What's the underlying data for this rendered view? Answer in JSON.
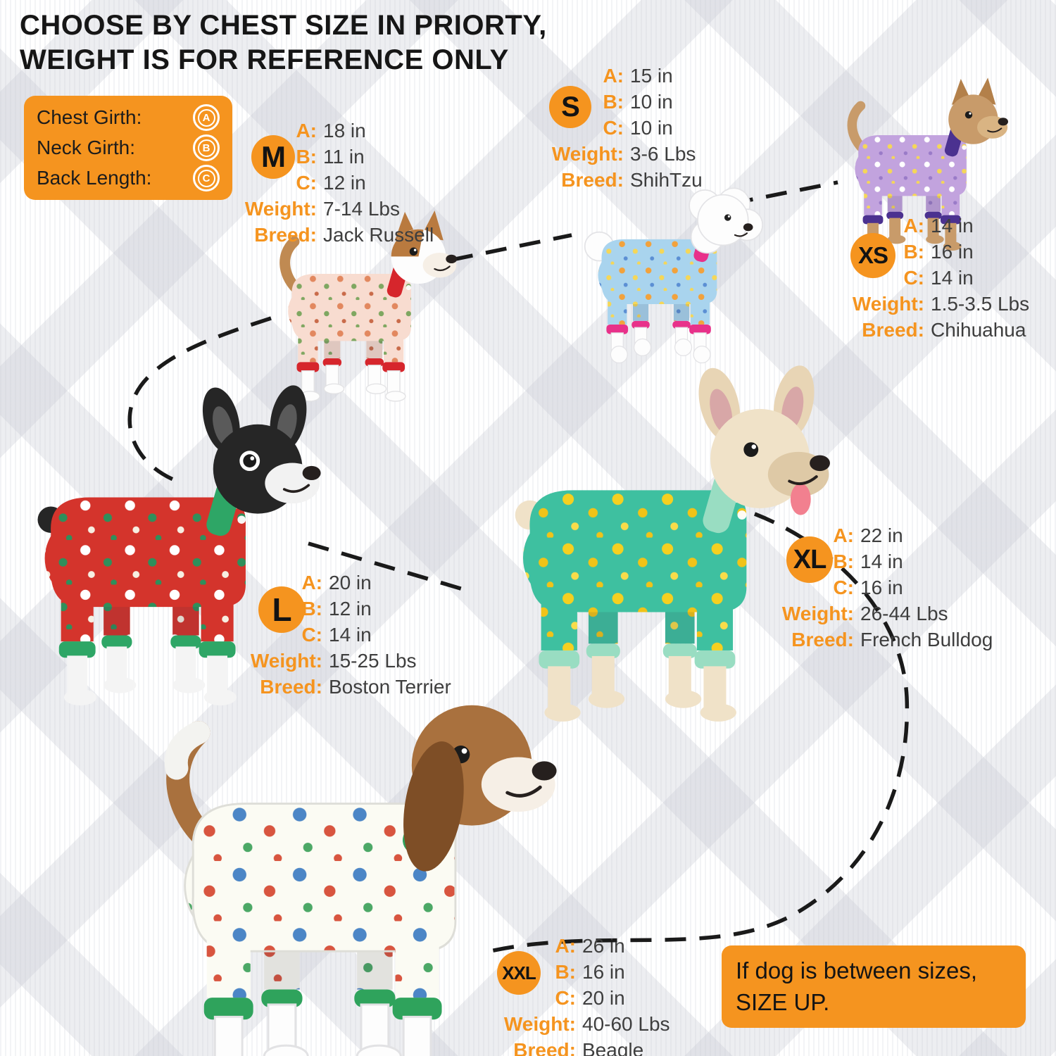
{
  "title": {
    "line1": "CHOOSE BY CHEST SIZE IN PRIORTY,",
    "line2": "WEIGHT IS FOR REFERENCE ONLY"
  },
  "legend": {
    "items": [
      {
        "label": "Chest Girth:",
        "symbol": "A"
      },
      {
        "label": "Neck Girth:",
        "symbol": "B"
      },
      {
        "label": "Back Length:",
        "symbol": "C"
      }
    ]
  },
  "row_labels": {
    "a": "A:",
    "b": "B:",
    "c": "C:",
    "weight": "Weight:",
    "breed": "Breed:"
  },
  "sizes": [
    {
      "id": "m",
      "badge": "M",
      "a": "18 in",
      "b": "11 in",
      "c": "12 in",
      "weight": "7-14 Lbs",
      "breed": "Jack Russell",
      "dog": {
        "style": "std",
        "pj": "#F8DCD0",
        "trim": "#D6262C",
        "dots": [
          "#E2885F",
          "#7FA761",
          "#C96B4A"
        ],
        "fur": "#FDFDFD",
        "furStroke": "#E2E2E4",
        "head": "#FDFDFD",
        "patch": "#B97A3F",
        "ear": "#B97A3F",
        "earType": "up",
        "muzzle": "#F6EFE6",
        "tailType": "upThin",
        "tail": "#C08A52"
      }
    },
    {
      "id": "s",
      "badge": "S",
      "a": "15 in",
      "b": "10 in",
      "c": "10 in",
      "weight": "3-6 Lbs",
      "breed": "ShihTzu",
      "dog": {
        "style": "fluffy",
        "pj": "#A9D4EE",
        "trim": "#E8318A",
        "dots": [
          "#F2A23C",
          "#F5D758",
          "#5B8FD4"
        ],
        "fur": "#FDFDFD",
        "furStroke": "#E3E3E6"
      }
    },
    {
      "id": "xs",
      "badge": "XS",
      "a": "14 in",
      "b": "16 in",
      "c": "14 in",
      "weight": "1.5-3.5 Lbs",
      "breed": "Chihuahua",
      "dog": {
        "style": "std",
        "pj": "#C2A3DE",
        "trim": "#4B3190",
        "dots": [
          "#FFFFFF",
          "#F5D758",
          "#9A7BC8"
        ],
        "fur": "#C89B6A",
        "head": "#C89B6A",
        "ear": "#B3804A",
        "earType": "up",
        "muzzle": "#D9B483",
        "tailType": "upThin",
        "tail": "#C89B6A"
      }
    },
    {
      "id": "l",
      "badge": "L",
      "a": "20 in",
      "b": "12 in",
      "c": "14 in",
      "weight": "15-25 Lbs",
      "breed": "Boston Terrier",
      "dog": {
        "style": "std",
        "pj": "#D4342C",
        "trim": "#2EA666",
        "dots": [
          "#FFFFFF",
          "#2F8F5B",
          "#F7EFE2"
        ],
        "fur": "#262626",
        "paw": "#F4F4F4",
        "head": "#262626",
        "ear": "#262626",
        "innerEar": "#5A5A5A",
        "earType": "bat",
        "muzzle": "#F2F2F2",
        "eyeRing": "#FFFFFF",
        "tailType": "nub"
      }
    },
    {
      "id": "xl",
      "badge": "XL",
      "a": "22 in",
      "b": "14 in",
      "c": "16 in",
      "weight": "26-44 Lbs",
      "breed": "French Bulldog",
      "dog": {
        "style": "std",
        "pj": "#3EC0A0",
        "trim": "#99DDC2",
        "dots": [
          "#F5D020",
          "#F0C318",
          "#F8DC4A"
        ],
        "fur": "#F0E2C8",
        "head": "#F0E2C8",
        "ear": "#E8D5B5",
        "innerEar": "#D8A7A7",
        "earType": "bat",
        "muzzle": "#DEC9A6",
        "tongue": true,
        "tailType": "nub"
      }
    },
    {
      "id": "xxl",
      "badge": "XXL",
      "a": "26 in",
      "b": "16 in",
      "c": "20 in",
      "weight": "40-60 Lbs",
      "breed": "Beagle",
      "dog": {
        "style": "std",
        "pj": "#FBFBF3",
        "pjStroke": "#DEDED8",
        "trim": "#2FA35C",
        "dots": [
          "#4C86C6",
          "#D8553F",
          "#4CA866"
        ],
        "fur": "#FDFDFD",
        "furStroke": "#E2E2E4",
        "head": "#A9713E",
        "ear": "#7E4E26",
        "earType": "floppy",
        "muzzle": "#F6EFE6",
        "tailType": "upThin",
        "tail": "#A9713E",
        "tailTip": "#F3F3F0"
      }
    }
  ],
  "note": {
    "line1": "If dog is between sizes,",
    "line2": "SIZE UP."
  },
  "colors": {
    "accent": "#F5941F",
    "value_text": "#3E3E3E",
    "title_text": "#161616",
    "dash": "#1A1A1A"
  }
}
